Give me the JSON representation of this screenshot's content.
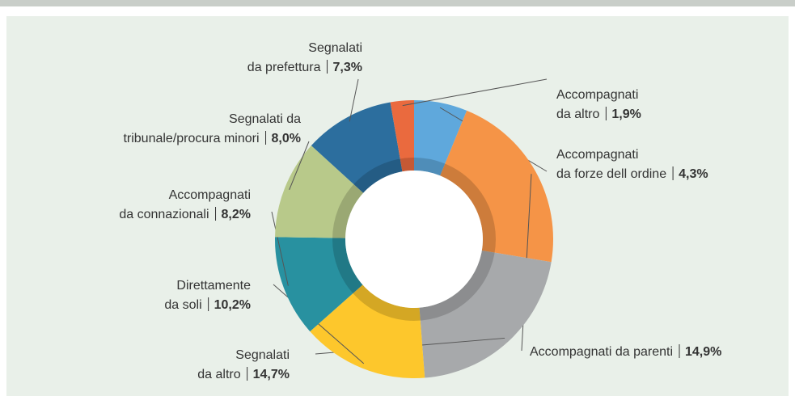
{
  "chart_data": {
    "type": "donut",
    "categories": [
      [
        "Accompagnati",
        "da forze dell ordine"
      ],
      [
        "Accompagnati da parenti"
      ],
      [
        "Segnalati",
        "da altro"
      ],
      [
        "Direttamente",
        "da soli"
      ],
      [
        "Accompagnati",
        "da connazionali"
      ],
      [
        "Segnalati da",
        "tribunale/procura minori"
      ],
      [
        "Segnalati",
        "da prefettura"
      ],
      [
        "Accompagnati",
        "da altro"
      ]
    ],
    "values": [
      4.3,
      14.9,
      14.7,
      10.2,
      8.2,
      8.0,
      7.3,
      1.9
    ],
    "value_labels": [
      "4,3%",
      "14,9%",
      "14,7%",
      "10,2%",
      "8,2%",
      "8,0%",
      "7,3%",
      "1,9%"
    ],
    "colors": [
      "#5fa8dc",
      "#f59447",
      "#a7a9ab",
      "#fdc72c",
      "#2891a0",
      "#b8c98a",
      "#2c6e9e",
      "#ea6a3e"
    ]
  }
}
